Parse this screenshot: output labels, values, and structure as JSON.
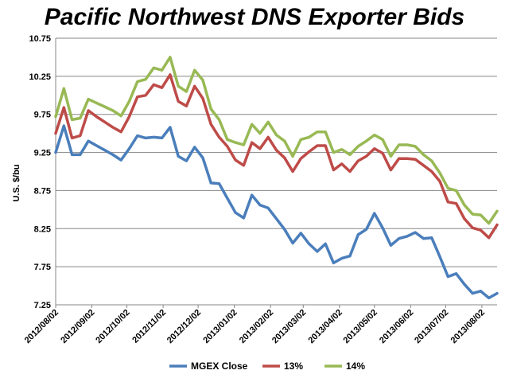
{
  "chart_data": {
    "type": "line",
    "title": "Pacific Northwest DNS Exporter Bids",
    "ylabel": "U.S. $/bu",
    "xlabel": "",
    "ylim": [
      7.25,
      10.75
    ],
    "yticks": [
      "7.25",
      "7.75",
      "8.25",
      "8.75",
      "9.25",
      "9.75",
      "10.25",
      "10.75"
    ],
    "grid": true,
    "legend_position": "bottom",
    "x": [
      "2012/08/02",
      "2012/08/09",
      "2012/08/16",
      "2012/08/23",
      "2012/08/30",
      "2012/09/06",
      "2012/09/13",
      "2012/09/20",
      "2012/09/27",
      "2012/10/04",
      "2012/10/11",
      "2012/10/18",
      "2012/10/25",
      "2012/11/01",
      "2012/11/08",
      "2012/11/15",
      "2012/11/22",
      "2012/11/29",
      "2012/12/06",
      "2012/12/13",
      "2012/12/20",
      "2012/12/27",
      "2013/01/03",
      "2013/01/10",
      "2013/01/17",
      "2013/01/24",
      "2013/01/31",
      "2013/02/07",
      "2013/02/14",
      "2013/02/21",
      "2013/02/28",
      "2013/03/07",
      "2013/03/14",
      "2013/03/21",
      "2013/03/28",
      "2013/04/04",
      "2013/04/11",
      "2013/04/18",
      "2013/04/25",
      "2013/05/02",
      "2013/05/09",
      "2013/05/16",
      "2013/05/23",
      "2013/05/30",
      "2013/06/06",
      "2013/06/13",
      "2013/06/20",
      "2013/06/27",
      "2013/07/04",
      "2013/07/11",
      "2013/07/18",
      "2013/07/25",
      "2013/08/01",
      "2013/08/08",
      "2013/08/15"
    ],
    "xtick_labels": [
      "2012/08/02",
      "2012/09/02",
      "2012/10/02",
      "2012/11/02",
      "2012/12/02",
      "2013/01/02",
      "2013/02/02",
      "2013/03/02",
      "2013/04/02",
      "2013/05/02",
      "2013/06/02",
      "2013/07/02",
      "2013/08/02"
    ],
    "series": [
      {
        "name": "MGEX Close",
        "color": "#4a7ebb",
        "values": [
          9.25,
          9.6,
          9.22,
          9.22,
          9.4,
          9.34,
          9.28,
          9.22,
          9.15,
          9.3,
          9.47,
          9.44,
          9.45,
          9.44,
          9.58,
          9.2,
          9.14,
          9.32,
          9.18,
          8.85,
          8.84,
          8.65,
          8.46,
          8.39,
          8.69,
          8.56,
          8.52,
          8.38,
          8.24,
          8.06,
          8.19,
          8.05,
          7.95,
          8.05,
          7.8,
          7.86,
          7.89,
          8.17,
          8.24,
          8.45,
          8.26,
          8.03,
          8.12,
          8.15,
          8.2,
          8.12,
          8.13,
          7.88,
          7.62,
          7.66,
          7.52,
          7.4,
          7.43,
          7.34,
          7.4
        ]
      },
      {
        "name": "13%",
        "color": "#be4b48",
        "values": [
          9.5,
          9.84,
          9.44,
          9.47,
          9.8,
          9.72,
          9.65,
          9.58,
          9.52,
          9.72,
          9.98,
          10.0,
          10.14,
          10.1,
          10.27,
          9.92,
          9.86,
          10.12,
          9.96,
          9.62,
          9.45,
          9.33,
          9.15,
          9.08,
          9.38,
          9.3,
          9.45,
          9.28,
          9.18,
          9.0,
          9.17,
          9.26,
          9.34,
          9.34,
          9.02,
          9.1,
          9.0,
          9.14,
          9.2,
          9.3,
          9.24,
          9.02,
          9.17,
          9.17,
          9.16,
          9.08,
          9.0,
          8.87,
          8.6,
          8.58,
          8.38,
          8.26,
          8.23,
          8.13,
          8.3
        ]
      },
      {
        "name": "14%",
        "color": "#98b954",
        "values": [
          9.72,
          10.09,
          9.68,
          9.7,
          9.95,
          9.9,
          9.85,
          9.8,
          9.73,
          9.92,
          10.18,
          10.21,
          10.36,
          10.33,
          10.5,
          10.12,
          10.05,
          10.33,
          10.2,
          9.82,
          9.68,
          9.42,
          9.38,
          9.35,
          9.62,
          9.5,
          9.65,
          9.48,
          9.4,
          9.2,
          9.42,
          9.45,
          9.52,
          9.52,
          9.25,
          9.29,
          9.22,
          9.33,
          9.4,
          9.48,
          9.42,
          9.2,
          9.35,
          9.35,
          9.33,
          9.22,
          9.14,
          8.98,
          8.78,
          8.75,
          8.56,
          8.44,
          8.43,
          8.32,
          8.48
        ]
      }
    ]
  }
}
